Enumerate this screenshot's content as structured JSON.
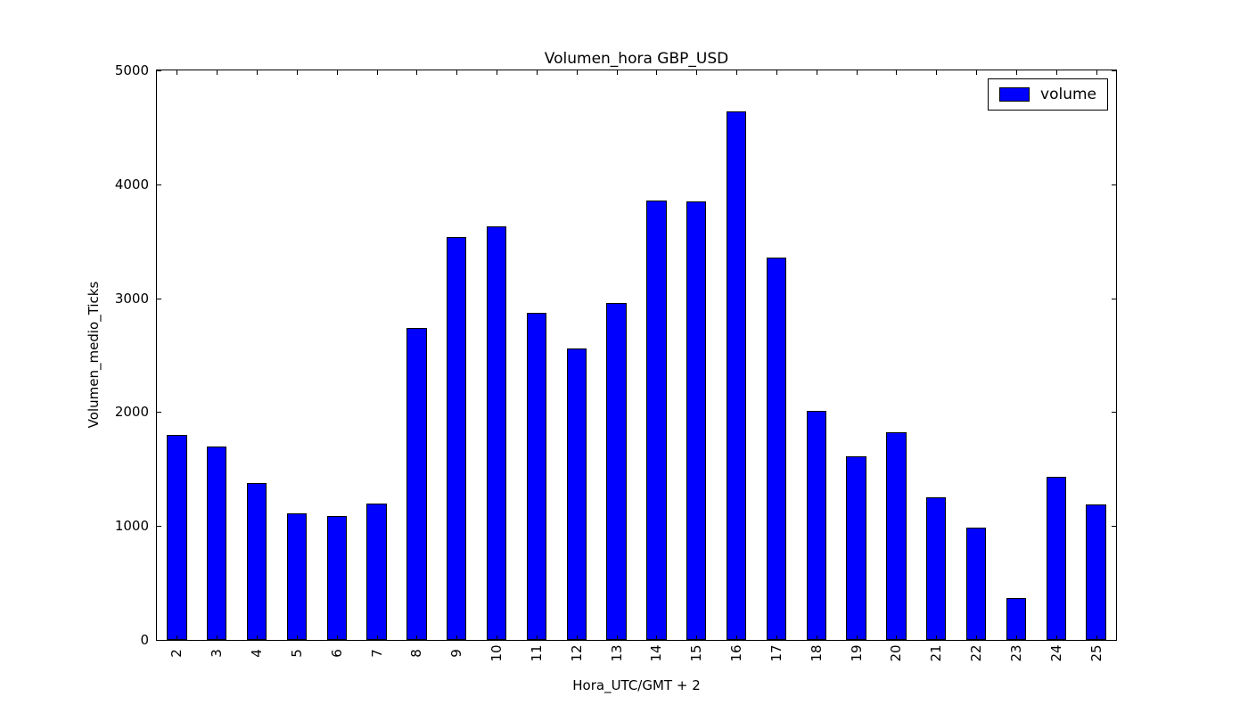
{
  "chart_data": {
    "type": "bar",
    "title": "Volumen_hora GBP_USD",
    "xlabel": "Hora_UTC/GMT + 2",
    "ylabel": "Volumen_medio_Ticks",
    "categories": [
      2,
      3,
      4,
      5,
      6,
      7,
      8,
      9,
      10,
      11,
      12,
      13,
      14,
      15,
      16,
      17,
      18,
      19,
      20,
      21,
      22,
      23,
      24,
      25
    ],
    "values": [
      1800,
      1700,
      1380,
      1110,
      1090,
      1200,
      2740,
      3540,
      3630,
      2870,
      2560,
      2960,
      3860,
      3850,
      4640,
      3360,
      2010,
      1610,
      1820,
      1250,
      990,
      370,
      1430,
      1190
    ],
    "series": [
      {
        "name": "volume",
        "values": [
          1800,
          1700,
          1380,
          1110,
          1090,
          1200,
          2740,
          3540,
          3630,
          2870,
          2560,
          2960,
          3860,
          3850,
          4640,
          3360,
          2010,
          1610,
          1820,
          1250,
          990,
          370,
          1430,
          1190
        ]
      }
    ],
    "ylim": [
      0,
      5000
    ],
    "xlim": [
      1.5,
      25.5
    ],
    "yticks": [
      0,
      1000,
      2000,
      3000,
      4000,
      5000
    ],
    "bar_width": 0.5,
    "bar_color": "#0000ff",
    "bar_edge_color": "#000000",
    "axis_color": "#000000",
    "background_color": "#ffffff",
    "grid": false,
    "xtick_rotation": 90,
    "legend": {
      "label": "volume",
      "position": "upper right"
    }
  }
}
